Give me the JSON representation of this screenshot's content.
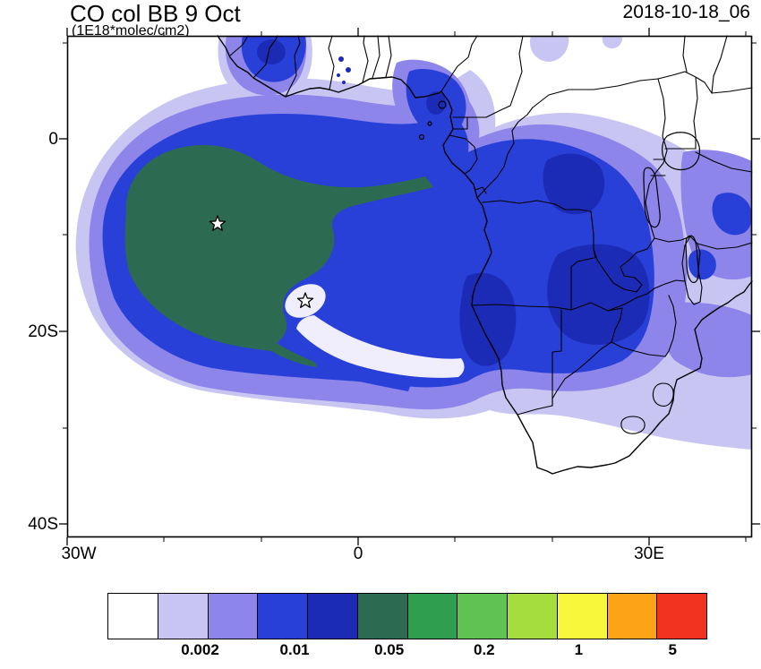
{
  "header": {
    "title": "CO col BB 9 Oct",
    "subtitle": "(1E18*molec/cm2)",
    "datetime": "2018-10-18_06"
  },
  "axes": {
    "y_ticks": [
      "0",
      "20S",
      "40S"
    ],
    "x_ticks": [
      "30W",
      "0",
      "30E"
    ]
  },
  "colorbar": {
    "labels": [
      "0.002",
      "0.01",
      "0.05",
      "0.2",
      "1",
      "5"
    ],
    "label_positions_pct": [
      15.5,
      31.3,
      47.1,
      63.0,
      78.8,
      94.5
    ],
    "colors": [
      "#ffffff",
      "#c9c5f3",
      "#8d85ea",
      "#2840d8",
      "#1c2bb5",
      "#2d6a52",
      "#2f9e4f",
      "#5fc353",
      "#a6dd3e",
      "#f8f73c",
      "#fca416",
      "#f2331f"
    ]
  },
  "map": {
    "region": "Africa and tropical South Atlantic, approx 30W-40E, 11N-41S",
    "markers": [
      {
        "symbol": "star",
        "lon": "14.5W",
        "lat": "9S"
      },
      {
        "symbol": "star",
        "lon": "5.5W",
        "lat": "17S"
      }
    ]
  },
  "chart_data": {
    "type": "heatmap",
    "title": "CO col BB 9 Oct",
    "units": "1E18*molec/cm2",
    "timestamp": "2018-10-18_06",
    "projection": "cylindrical lat-lon map of Africa / South Atlantic",
    "x_axis": {
      "ticks": [
        "30W",
        "0",
        "30E"
      ],
      "range": [
        "30W",
        "40E"
      ]
    },
    "y_axis": {
      "ticks": [
        "0",
        "20S",
        "40S"
      ],
      "range": [
        "11N",
        "41S"
      ]
    },
    "labeled_levels": [
      0.002,
      0.01,
      0.05,
      0.2,
      1,
      5
    ],
    "estimated_all_levels": [
      0.002,
      0.005,
      0.01,
      0.02,
      0.05,
      0.1,
      0.2,
      0.5,
      1,
      2,
      5
    ],
    "palette": [
      "#ffffff",
      "#c9c5f3",
      "#8d85ea",
      "#2840d8",
      "#1c2bb5",
      "#2d6a52",
      "#2f9e4f",
      "#5fc353",
      "#a6dd3e",
      "#f8f73c",
      "#fca416",
      "#f2331f"
    ],
    "max_band": "0.05-0.1 (dark sea-green core of offshore plume)",
    "features": [
      "Large biomass-burning CO plume over the South Atlantic off Angola, spiral/comma shaped",
      "Dark green maximum core roughly 21W-5W, 5S-20S with star marker at its center",
      "Pale 'eye' hole with second star marker near 5.5W, 17S and a pale gap band spiraling southeast",
      "Broad blue CO mass over Congo basin, Angola and Zambia with darker blue patches",
      "Purple and lavender fringes extending over East and Southern Africa to the map edge",
      "Small plume patches along the Gulf of Guinea coast near the top of the map",
      "White (below 0.002) in northwest corner, southwest ocean and southern South Africa"
    ]
  }
}
